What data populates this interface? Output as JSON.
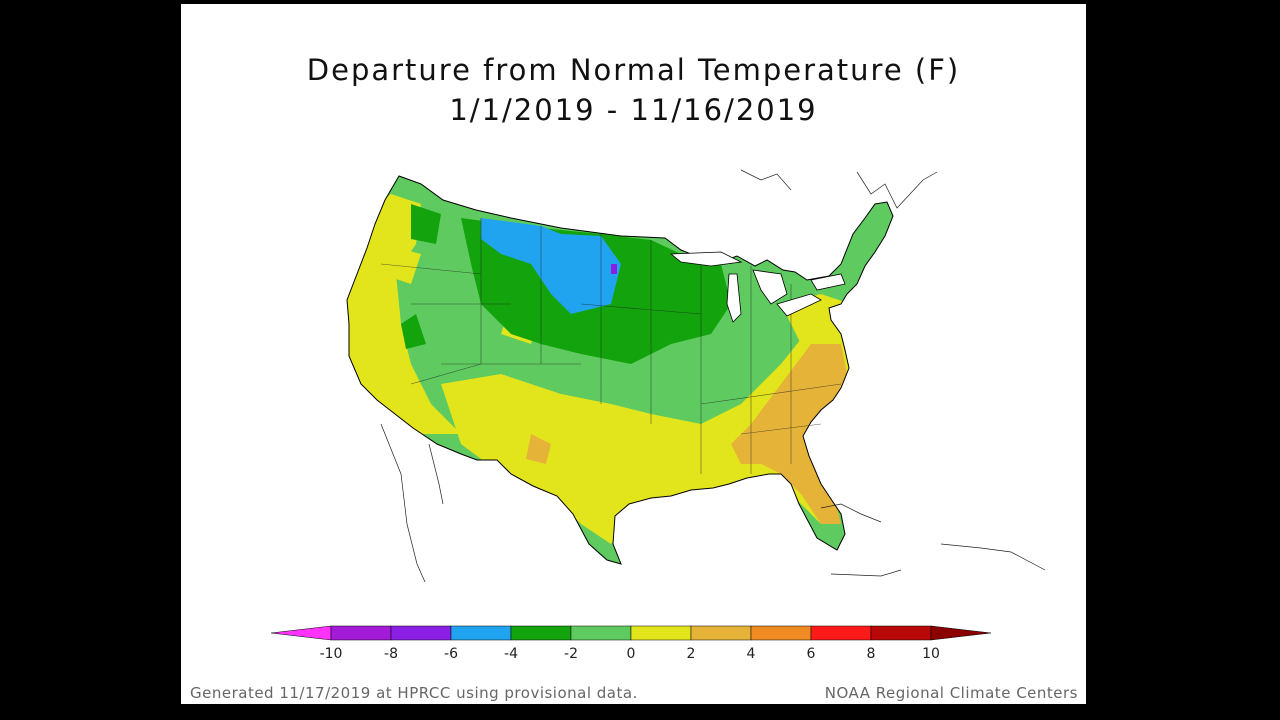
{
  "map": {
    "title_line1": "Departure from Normal Temperature (F)",
    "title_line2": "1/1/2019 - 11/16/2019",
    "region": "Contiguous United States",
    "colors": {
      "minus10": "#ff33ff",
      "minus8": "#9900cc",
      "minus6": "#7a1fe0",
      "minus4": "#1f9fff",
      "minus2": "#1aa612",
      "zero": "#66cc66",
      "plus2": "#e6e619",
      "plus4": "#e6b02e",
      "plus6": "#f08a24",
      "plus8": "#ff1a1a",
      "plus10": "#b30000"
    }
  },
  "legend": {
    "tick_labels": [
      "-10",
      "-8",
      "-6",
      "-4",
      "-2",
      "0",
      "2",
      "4",
      "6",
      "8",
      "10"
    ],
    "bins": [
      {
        "from": -10,
        "to": -8,
        "color": "#a21bd6"
      },
      {
        "from": -8,
        "to": -6,
        "color": "#8b1fe3"
      },
      {
        "from": -6,
        "to": -4,
        "color": "#20a4f0"
      },
      {
        "from": -4,
        "to": -2,
        "color": "#12a30d"
      },
      {
        "from": -2,
        "to": 0,
        "color": "#5fca5f"
      },
      {
        "from": 0,
        "to": 2,
        "color": "#e3e51c"
      },
      {
        "from": 2,
        "to": 4,
        "color": "#e5b338"
      },
      {
        "from": 4,
        "to": 6,
        "color": "#f08b24"
      },
      {
        "from": 6,
        "to": 8,
        "color": "#ff1a1a"
      },
      {
        "from": 8,
        "to": 10,
        "color": "#b80808"
      }
    ],
    "below_min_color": "#ff33ff",
    "above_max_color": "#8b0000"
  },
  "footer": {
    "left_text": "Generated 11/17/2019 at HPRCC using provisional data.",
    "right_text": "NOAA Regional Climate Centers"
  }
}
